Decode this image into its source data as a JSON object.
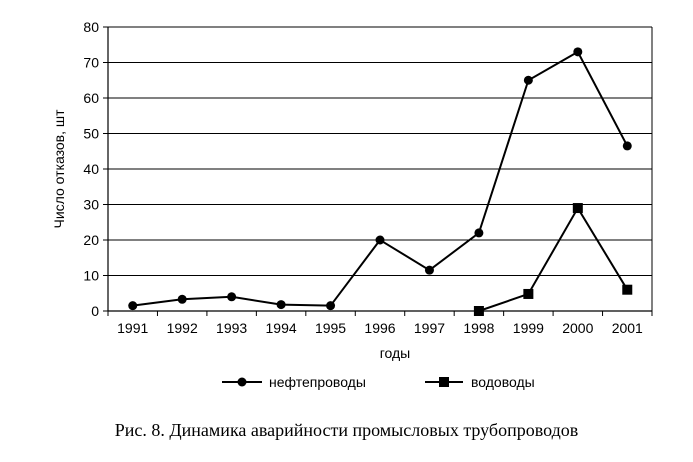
{
  "chart_data": {
    "type": "line",
    "x": [
      "1991",
      "1992",
      "1993",
      "1994",
      "1995",
      "1996",
      "1997",
      "1998",
      "1999",
      "2000",
      "2001"
    ],
    "xlabel": "годы",
    "ylabel": "Число отказов, шт",
    "ylim": [
      0,
      80
    ],
    "yticks": [
      0,
      10,
      20,
      30,
      40,
      50,
      60,
      70,
      80
    ],
    "grid": true,
    "legend": "bottom",
    "series": [
      {
        "name": "нефтепроводы",
        "marker": "circle",
        "values": [
          1.5,
          3.3,
          4,
          1.8,
          1.5,
          20,
          11.5,
          22,
          65,
          73,
          46.5
        ]
      },
      {
        "name": "водоводы",
        "marker": "square",
        "values": [
          null,
          null,
          null,
          null,
          null,
          null,
          null,
          0,
          4.8,
          29,
          6
        ]
      }
    ]
  },
  "caption": "Рис. 8. Динамика аварийности промысловых трубопроводов"
}
